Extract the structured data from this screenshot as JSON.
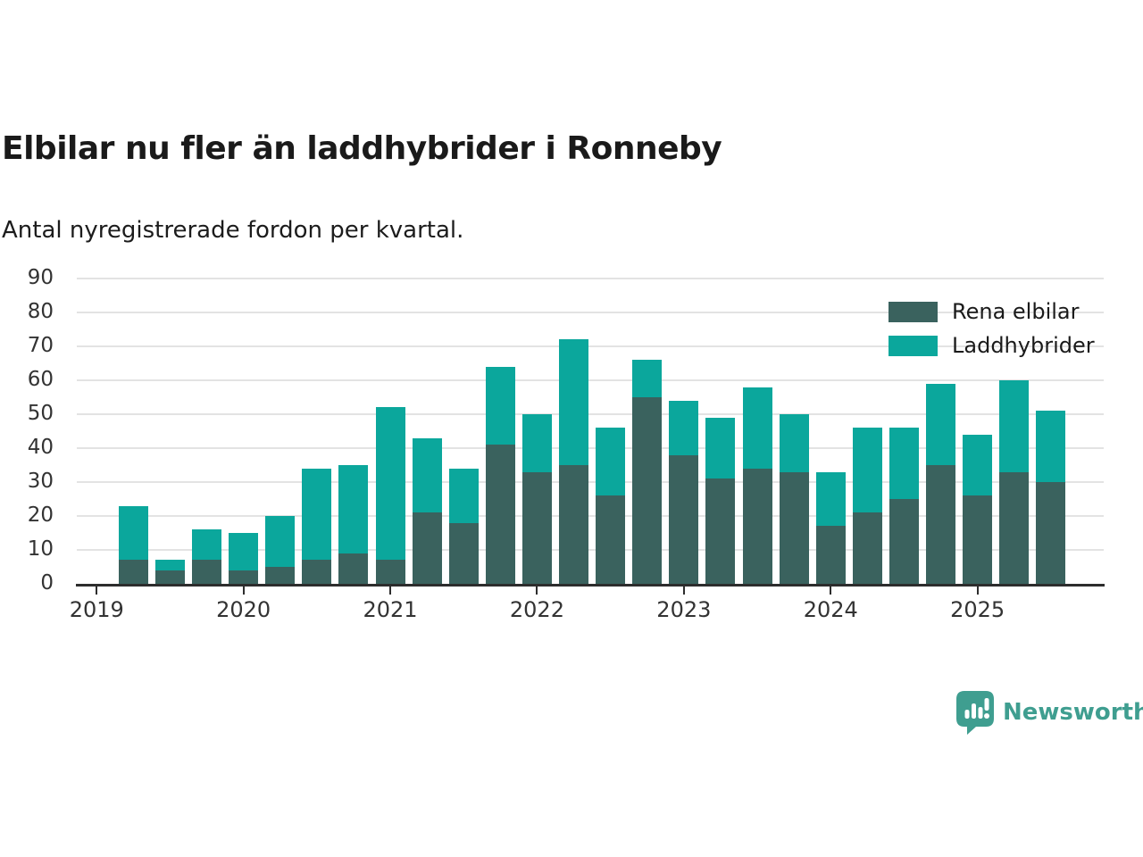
{
  "chart_data": {
    "type": "bar",
    "stacked": true,
    "title": "Elbilar nu fler än laddhybrider i Ronneby",
    "subtitle": "Antal nyregistrerade fordon per kvartal.",
    "categories": [
      "2019 Q2",
      "2019 Q3",
      "2019 Q4",
      "2020 Q1",
      "2020 Q2",
      "2020 Q3",
      "2020 Q4",
      "2021 Q1",
      "2021 Q2",
      "2021 Q3",
      "2021 Q4",
      "2022 Q1",
      "2022 Q2",
      "2022 Q3",
      "2022 Q4",
      "2023 Q1",
      "2023 Q2",
      "2023 Q3",
      "2023 Q4",
      "2024 Q1",
      "2024 Q2",
      "2024 Q3",
      "2024 Q4",
      "2025 Q1",
      "2025 Q2",
      "2025 Q3"
    ],
    "series": [
      {
        "name": "Rena elbilar",
        "color": "#3a625e",
        "values": [
          7,
          4,
          7,
          4,
          5,
          7,
          9,
          7,
          21,
          18,
          41,
          33,
          35,
          26,
          55,
          38,
          31,
          34,
          33,
          17,
          21,
          25,
          35,
          26,
          33,
          30
        ]
      },
      {
        "name": "Laddhybrider",
        "color": "#0ba79c",
        "values": [
          16,
          3,
          9,
          11,
          15,
          27,
          26,
          45,
          22,
          16,
          23,
          17,
          37,
          20,
          11,
          16,
          18,
          24,
          17,
          16,
          25,
          21,
          24,
          18,
          27,
          21
        ]
      }
    ],
    "totals": [
      23,
      7,
      16,
      15,
      20,
      34,
      35,
      52,
      43,
      34,
      64,
      50,
      72,
      46,
      66,
      54,
      49,
      58,
      50,
      33,
      46,
      46,
      59,
      44,
      60,
      51
    ],
    "x_axis": {
      "tick_labels": [
        "2019",
        "2020",
        "2021",
        "2022",
        "2023",
        "2024",
        "2025"
      ],
      "quarters_per_year": 4,
      "first_band": "2019 Q1",
      "last_band": "2025 Q4"
    },
    "y_axis": {
      "min": 0,
      "max": 90,
      "step": 10
    },
    "grid": "horizontal",
    "legend_position": "top-right"
  },
  "branding": {
    "logo_text": "Newsworthy",
    "brand_color": "#3f9e90",
    "logo_icon": "speech-bubble-bar-chart"
  }
}
